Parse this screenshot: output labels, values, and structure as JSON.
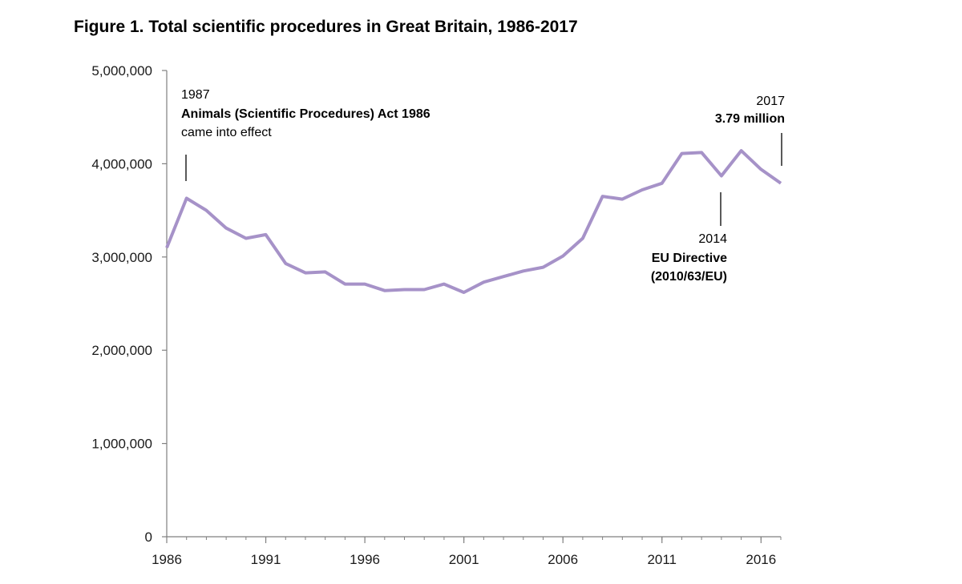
{
  "chart_data": {
    "type": "line",
    "title": "Figure 1. Total scientific procedures in Great Britain, 1986-2017",
    "xlabel": "",
    "ylabel": "",
    "xlim": [
      1986,
      2017
    ],
    "ylim": [
      0,
      5000000
    ],
    "x_ticks": [
      1986,
      1991,
      1996,
      2001,
      2006,
      2011,
      2016
    ],
    "x_tick_labels": [
      "1986",
      "1991",
      "1996",
      "2001",
      "2006",
      "2011",
      "2016"
    ],
    "y_ticks": [
      0,
      1000000,
      2000000,
      3000000,
      4000000,
      5000000
    ],
    "y_tick_labels": [
      "0",
      "1,000,000",
      "2,000,000",
      "3,000,000",
      "4,000,000",
      "5,000,000"
    ],
    "grid": false,
    "legend": "none",
    "series": [
      {
        "color": "#a692c8",
        "x": [
          1986,
          1987,
          1988,
          1989,
          1990,
          1991,
          1992,
          1993,
          1994,
          1995,
          1996,
          1997,
          1998,
          1999,
          2000,
          2001,
          2002,
          2003,
          2004,
          2005,
          2006,
          2007,
          2008,
          2009,
          2010,
          2011,
          2012,
          2013,
          2014,
          2015,
          2016,
          2017
        ],
        "values": [
          3100000,
          3630000,
          3500000,
          3310000,
          3200000,
          3240000,
          2930000,
          2830000,
          2840000,
          2710000,
          2710000,
          2640000,
          2650000,
          2650000,
          2710000,
          2620000,
          2730000,
          2790000,
          2850000,
          2890000,
          3010000,
          3200000,
          3650000,
          3620000,
          3720000,
          3790000,
          4110000,
          4120000,
          3870000,
          4140000,
          3940000,
          3790000
        ]
      }
    ],
    "annotations": [
      {
        "name": "act-1986",
        "x": 1987,
        "lines": [
          "1987",
          "Animals (Scientific Procedures) Act 1986",
          "came into effect"
        ]
      },
      {
        "name": "eu-directive",
        "x": 2014,
        "lines": [
          "2014",
          "EU Directive",
          "(2010/63/EU)"
        ]
      },
      {
        "name": "latest-2017",
        "x": 2017,
        "lines": [
          "2017",
          "3.79 million"
        ]
      }
    ]
  }
}
